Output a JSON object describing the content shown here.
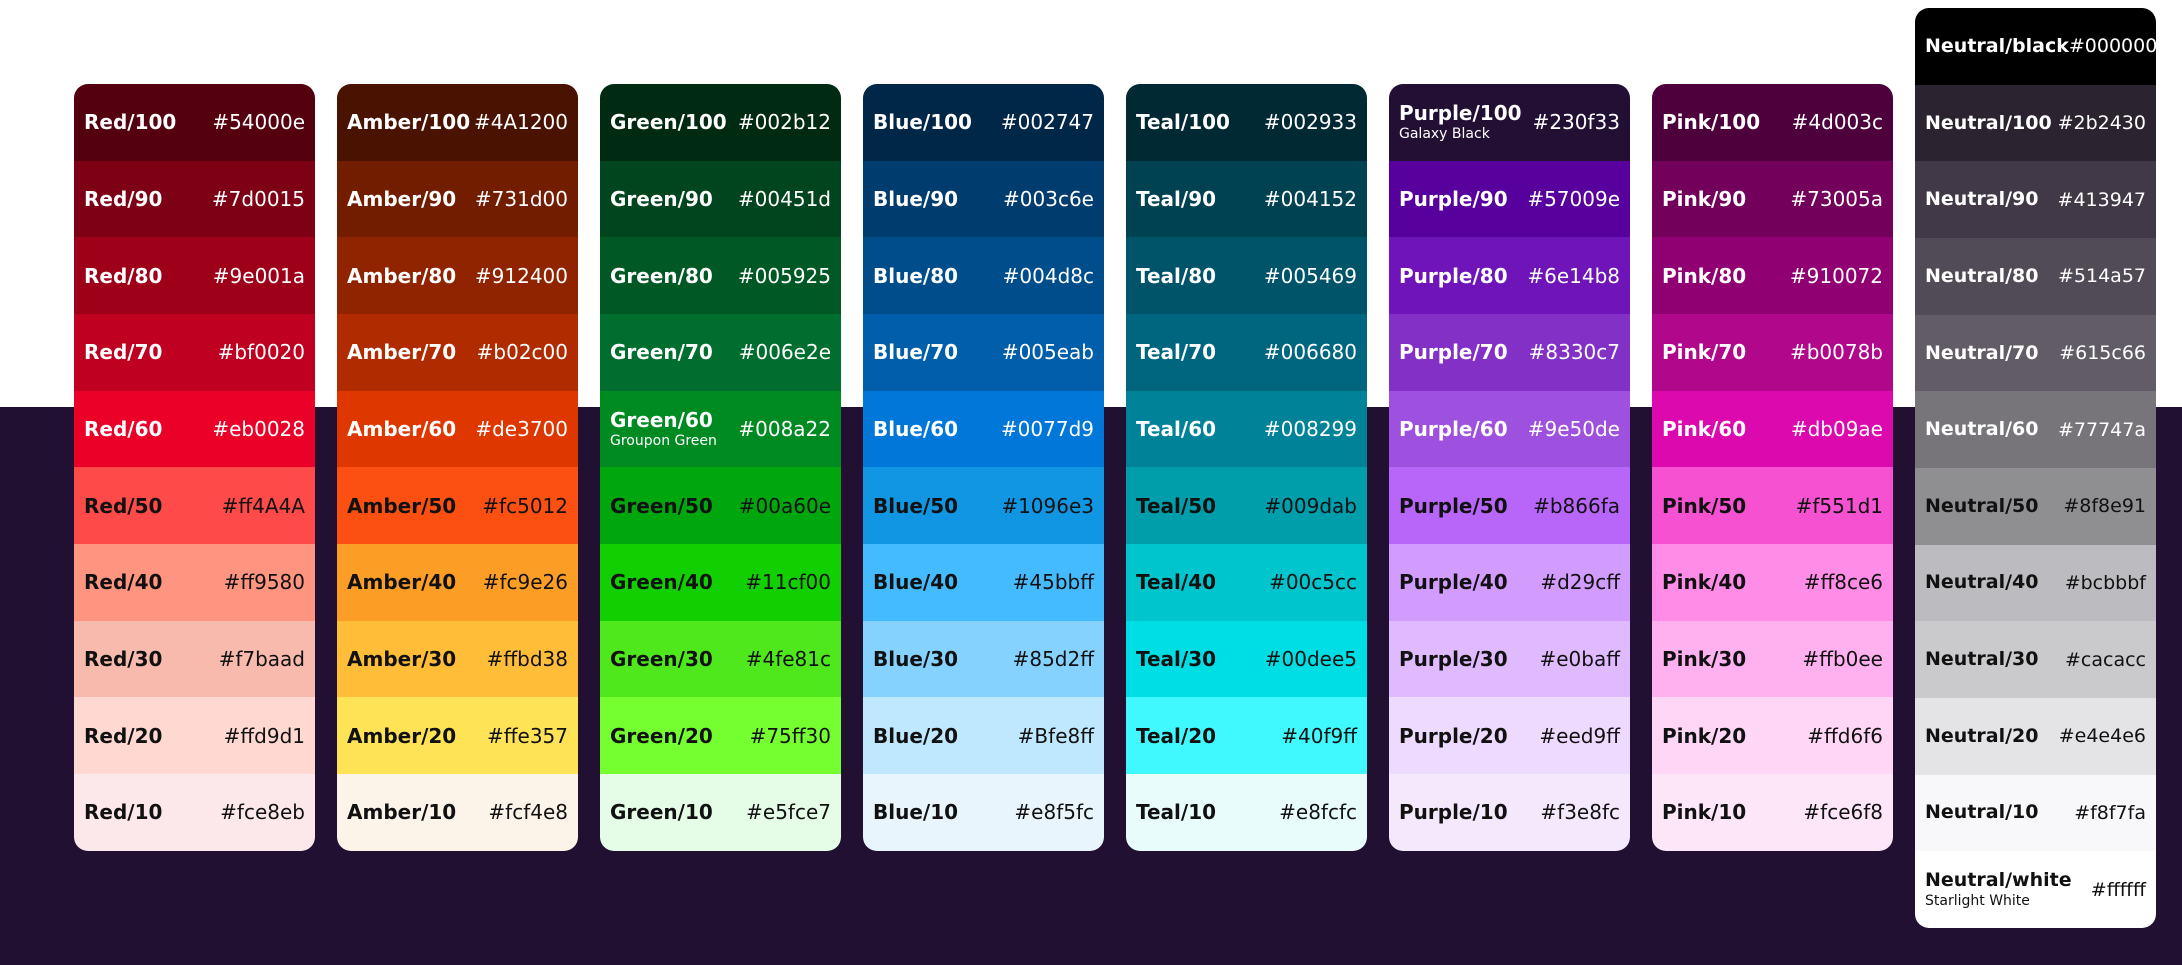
{
  "palettes": [
    {
      "name": "Red",
      "swatches": [
        {
          "label": "Red/100",
          "hex": "#54000e",
          "sub": "",
          "bg": "#54000e",
          "fg": "#ffffff"
        },
        {
          "label": "Red/90",
          "hex": "#7d0015",
          "sub": "",
          "bg": "#7d0015",
          "fg": "#ffffff"
        },
        {
          "label": "Red/80",
          "hex": "#9e001a",
          "sub": "",
          "bg": "#9e001a",
          "fg": "#ffffff"
        },
        {
          "label": "Red/70",
          "hex": "#bf0020",
          "sub": "",
          "bg": "#bf0020",
          "fg": "#ffffff"
        },
        {
          "label": "Red/60",
          "hex": "#eb0028",
          "sub": "",
          "bg": "#eb0028",
          "fg": "#ffffff"
        },
        {
          "label": "Red/50",
          "hex": "#ff4A4A",
          "sub": "",
          "bg": "#ff4a4a",
          "fg": "#111111"
        },
        {
          "label": "Red/40",
          "hex": "#ff9580",
          "sub": "",
          "bg": "#ff9580",
          "fg": "#111111"
        },
        {
          "label": "Red/30",
          "hex": "#f7baad",
          "sub": "",
          "bg": "#f7baad",
          "fg": "#111111"
        },
        {
          "label": "Red/20",
          "hex": "#ffd9d1",
          "sub": "",
          "bg": "#ffd9d1",
          "fg": "#111111"
        },
        {
          "label": "Red/10",
          "hex": "#fce8eb",
          "sub": "",
          "bg": "#fce8eb",
          "fg": "#111111"
        }
      ]
    },
    {
      "name": "Amber",
      "swatches": [
        {
          "label": "Amber/100",
          "hex": "#4A1200",
          "sub": "",
          "bg": "#4a1200",
          "fg": "#ffffff"
        },
        {
          "label": "Amber/90",
          "hex": "#731d00",
          "sub": "",
          "bg": "#731d00",
          "fg": "#ffffff"
        },
        {
          "label": "Amber/80",
          "hex": "#912400",
          "sub": "",
          "bg": "#912400",
          "fg": "#ffffff"
        },
        {
          "label": "Amber/70",
          "hex": "#b02c00",
          "sub": "",
          "bg": "#b02c00",
          "fg": "#ffffff"
        },
        {
          "label": "Amber/60",
          "hex": "#de3700",
          "sub": "",
          "bg": "#de3700",
          "fg": "#ffffff"
        },
        {
          "label": "Amber/50",
          "hex": "#fc5012",
          "sub": "",
          "bg": "#fc5012",
          "fg": "#111111"
        },
        {
          "label": "Amber/40",
          "hex": "#fc9e26",
          "sub": "",
          "bg": "#fc9e26",
          "fg": "#111111"
        },
        {
          "label": "Amber/30",
          "hex": "#ffbd38",
          "sub": "",
          "bg": "#ffbd38",
          "fg": "#111111"
        },
        {
          "label": "Amber/20",
          "hex": "#ffe357",
          "sub": "",
          "bg": "#ffe357",
          "fg": "#111111"
        },
        {
          "label": "Amber/10",
          "hex": "#fcf4e8",
          "sub": "",
          "bg": "#fcf4e8",
          "fg": "#111111"
        }
      ]
    },
    {
      "name": "Green",
      "swatches": [
        {
          "label": "Green/100",
          "hex": "#002b12",
          "sub": "",
          "bg": "#002b12",
          "fg": "#ffffff"
        },
        {
          "label": "Green/90",
          "hex": "#00451d",
          "sub": "",
          "bg": "#00451d",
          "fg": "#ffffff"
        },
        {
          "label": "Green/80",
          "hex": "#005925",
          "sub": "",
          "bg": "#005925",
          "fg": "#ffffff"
        },
        {
          "label": "Green/70",
          "hex": "#006e2e",
          "sub": "",
          "bg": "#006e2e",
          "fg": "#ffffff"
        },
        {
          "label": "Green/60",
          "hex": "#008a22",
          "sub": "Groupon Green",
          "bg": "#008a22",
          "fg": "#ffffff"
        },
        {
          "label": "Green/50",
          "hex": "#00a60e",
          "sub": "",
          "bg": "#00a60e",
          "fg": "#111111"
        },
        {
          "label": "Green/40",
          "hex": "#11cf00",
          "sub": "",
          "bg": "#11cf00",
          "fg": "#111111"
        },
        {
          "label": "Green/30",
          "hex": "#4fe81c",
          "sub": "",
          "bg": "#4fe81c",
          "fg": "#111111"
        },
        {
          "label": "Green/20",
          "hex": "#75ff30",
          "sub": "",
          "bg": "#75ff30",
          "fg": "#111111"
        },
        {
          "label": "Green/10",
          "hex": "#e5fce7",
          "sub": "",
          "bg": "#e5fce7",
          "fg": "#111111"
        }
      ]
    },
    {
      "name": "Blue",
      "swatches": [
        {
          "label": "Blue/100",
          "hex": "#002747",
          "sub": "",
          "bg": "#002747",
          "fg": "#ffffff"
        },
        {
          "label": "Blue/90",
          "hex": "#003c6e",
          "sub": "",
          "bg": "#003c6e",
          "fg": "#ffffff"
        },
        {
          "label": "Blue/80",
          "hex": "#004d8c",
          "sub": "",
          "bg": "#004d8c",
          "fg": "#ffffff"
        },
        {
          "label": "Blue/70",
          "hex": "#005eab",
          "sub": "",
          "bg": "#005eab",
          "fg": "#ffffff"
        },
        {
          "label": "Blue/60",
          "hex": "#0077d9",
          "sub": "",
          "bg": "#0077d9",
          "fg": "#ffffff"
        },
        {
          "label": "Blue/50",
          "hex": "#1096e3",
          "sub": "",
          "bg": "#1096e3",
          "fg": "#111111"
        },
        {
          "label": "Blue/40",
          "hex": "#45bbff",
          "sub": "",
          "bg": "#45bbff",
          "fg": "#111111"
        },
        {
          "label": "Blue/30",
          "hex": "#85d2ff",
          "sub": "",
          "bg": "#85d2ff",
          "fg": "#111111"
        },
        {
          "label": "Blue/20",
          "hex": "#Bfe8ff",
          "sub": "",
          "bg": "#bfe8ff",
          "fg": "#111111"
        },
        {
          "label": "Blue/10",
          "hex": "#e8f5fc",
          "sub": "",
          "bg": "#e8f5fc",
          "fg": "#111111"
        }
      ]
    },
    {
      "name": "Teal",
      "swatches": [
        {
          "label": "Teal/100",
          "hex": "#002933",
          "sub": "",
          "bg": "#002933",
          "fg": "#ffffff"
        },
        {
          "label": "Teal/90",
          "hex": "#004152",
          "sub": "",
          "bg": "#004152",
          "fg": "#ffffff"
        },
        {
          "label": "Teal/80",
          "hex": "#005469",
          "sub": "",
          "bg": "#005469",
          "fg": "#ffffff"
        },
        {
          "label": "Teal/70",
          "hex": "#006680",
          "sub": "",
          "bg": "#006680",
          "fg": "#ffffff"
        },
        {
          "label": "Teal/60",
          "hex": "#008299",
          "sub": "",
          "bg": "#008299",
          "fg": "#ffffff"
        },
        {
          "label": "Teal/50",
          "hex": "#009dab",
          "sub": "",
          "bg": "#009dab",
          "fg": "#111111"
        },
        {
          "label": "Teal/40",
          "hex": "#00c5cc",
          "sub": "",
          "bg": "#00c5cc",
          "fg": "#111111"
        },
        {
          "label": "Teal/30",
          "hex": "#00dee5",
          "sub": "",
          "bg": "#00dee5",
          "fg": "#111111"
        },
        {
          "label": "Teal/20",
          "hex": "#40f9ff",
          "sub": "",
          "bg": "#40f9ff",
          "fg": "#111111"
        },
        {
          "label": "Teal/10",
          "hex": "#e8fcfc",
          "sub": "",
          "bg": "#e8fcfc",
          "fg": "#111111"
        }
      ]
    },
    {
      "name": "Purple",
      "swatches": [
        {
          "label": "Purple/100",
          "hex": "#230f33",
          "sub": "Galaxy Black",
          "bg": "#230f33",
          "fg": "#ffffff"
        },
        {
          "label": "Purple/90",
          "hex": "#57009e",
          "sub": "",
          "bg": "#57009e",
          "fg": "#ffffff"
        },
        {
          "label": "Purple/80",
          "hex": "#6e14b8",
          "sub": "",
          "bg": "#6e14b8",
          "fg": "#ffffff"
        },
        {
          "label": "Purple/70",
          "hex": "#8330c7",
          "sub": "",
          "bg": "#8330c7",
          "fg": "#ffffff"
        },
        {
          "label": "Purple/60",
          "hex": "#9e50de",
          "sub": "",
          "bg": "#9e50de",
          "fg": "#ffffff"
        },
        {
          "label": "Purple/50",
          "hex": "#b866fa",
          "sub": "",
          "bg": "#b866fa",
          "fg": "#111111"
        },
        {
          "label": "Purple/40",
          "hex": "#d29cff",
          "sub": "",
          "bg": "#d29cff",
          "fg": "#111111"
        },
        {
          "label": "Purple/30",
          "hex": "#e0baff",
          "sub": "",
          "bg": "#e0baff",
          "fg": "#111111"
        },
        {
          "label": "Purple/20",
          "hex": "#eed9ff",
          "sub": "",
          "bg": "#eed9ff",
          "fg": "#111111"
        },
        {
          "label": "Purple/10",
          "hex": "#f3e8fc",
          "sub": "",
          "bg": "#f3e8fc",
          "fg": "#111111"
        }
      ]
    },
    {
      "name": "Pink",
      "swatches": [
        {
          "label": "Pink/100",
          "hex": "#4d003c",
          "sub": "",
          "bg": "#4d003c",
          "fg": "#ffffff"
        },
        {
          "label": "Pink/90",
          "hex": "#73005a",
          "sub": "",
          "bg": "#73005a",
          "fg": "#ffffff"
        },
        {
          "label": "Pink/80",
          "hex": "#910072",
          "sub": "",
          "bg": "#910072",
          "fg": "#ffffff"
        },
        {
          "label": "Pink/70",
          "hex": "#b0078b",
          "sub": "",
          "bg": "#b0078b",
          "fg": "#ffffff"
        },
        {
          "label": "Pink/60",
          "hex": "#db09ae",
          "sub": "",
          "bg": "#db09ae",
          "fg": "#ffffff"
        },
        {
          "label": "Pink/50",
          "hex": "#f551d1",
          "sub": "",
          "bg": "#f551d1",
          "fg": "#111111"
        },
        {
          "label": "Pink/40",
          "hex": "#ff8ce6",
          "sub": "",
          "bg": "#ff8ce6",
          "fg": "#111111"
        },
        {
          "label": "Pink/30",
          "hex": "#ffb0ee",
          "sub": "",
          "bg": "#ffb0ee",
          "fg": "#111111"
        },
        {
          "label": "Pink/20",
          "hex": "#ffd6f6",
          "sub": "",
          "bg": "#ffd6f6",
          "fg": "#111111"
        },
        {
          "label": "Pink/10",
          "hex": "#fce6f8",
          "sub": "",
          "bg": "#fce6f8",
          "fg": "#111111"
        }
      ]
    },
    {
      "name": "Neutral",
      "swatches": [
        {
          "label": "Neutral/black",
          "hex": "#000000",
          "sub": "",
          "bg": "#000000",
          "fg": "#ffffff"
        },
        {
          "label": "Neutral/100",
          "hex": "#2b2430",
          "sub": "",
          "bg": "#2b2430",
          "fg": "#ffffff"
        },
        {
          "label": "Neutral/90",
          "hex": "#413947",
          "sub": "",
          "bg": "#413947",
          "fg": "#ffffff"
        },
        {
          "label": "Neutral/80",
          "hex": "#514a57",
          "sub": "",
          "bg": "#514a57",
          "fg": "#ffffff"
        },
        {
          "label": "Neutral/70",
          "hex": "#615c66",
          "sub": "",
          "bg": "#615c66",
          "fg": "#ffffff"
        },
        {
          "label": "Neutral/60",
          "hex": "#77747a",
          "sub": "",
          "bg": "#77747a",
          "fg": "#ffffff"
        },
        {
          "label": "Neutral/50",
          "hex": "#8f8e91",
          "sub": "",
          "bg": "#8f8e91",
          "fg": "#111111"
        },
        {
          "label": "Neutral/40",
          "hex": "#bcbbbf",
          "sub": "",
          "bg": "#bcbbbf",
          "fg": "#111111"
        },
        {
          "label": "Neutral/30",
          "hex": "#cacacc",
          "sub": "",
          "bg": "#cacacc",
          "fg": "#111111"
        },
        {
          "label": "Neutral/20",
          "hex": "#e4e4e6",
          "sub": "",
          "bg": "#e4e4e6",
          "fg": "#111111"
        },
        {
          "label": "Neutral/10",
          "hex": "#f8f7fa",
          "sub": "",
          "bg": "#f8f7fa",
          "fg": "#111111"
        },
        {
          "label": "Neutral/white",
          "hex": "#ffffff",
          "sub": "Starlight White",
          "bg": "#ffffff",
          "fg": "#111111"
        }
      ]
    }
  ]
}
